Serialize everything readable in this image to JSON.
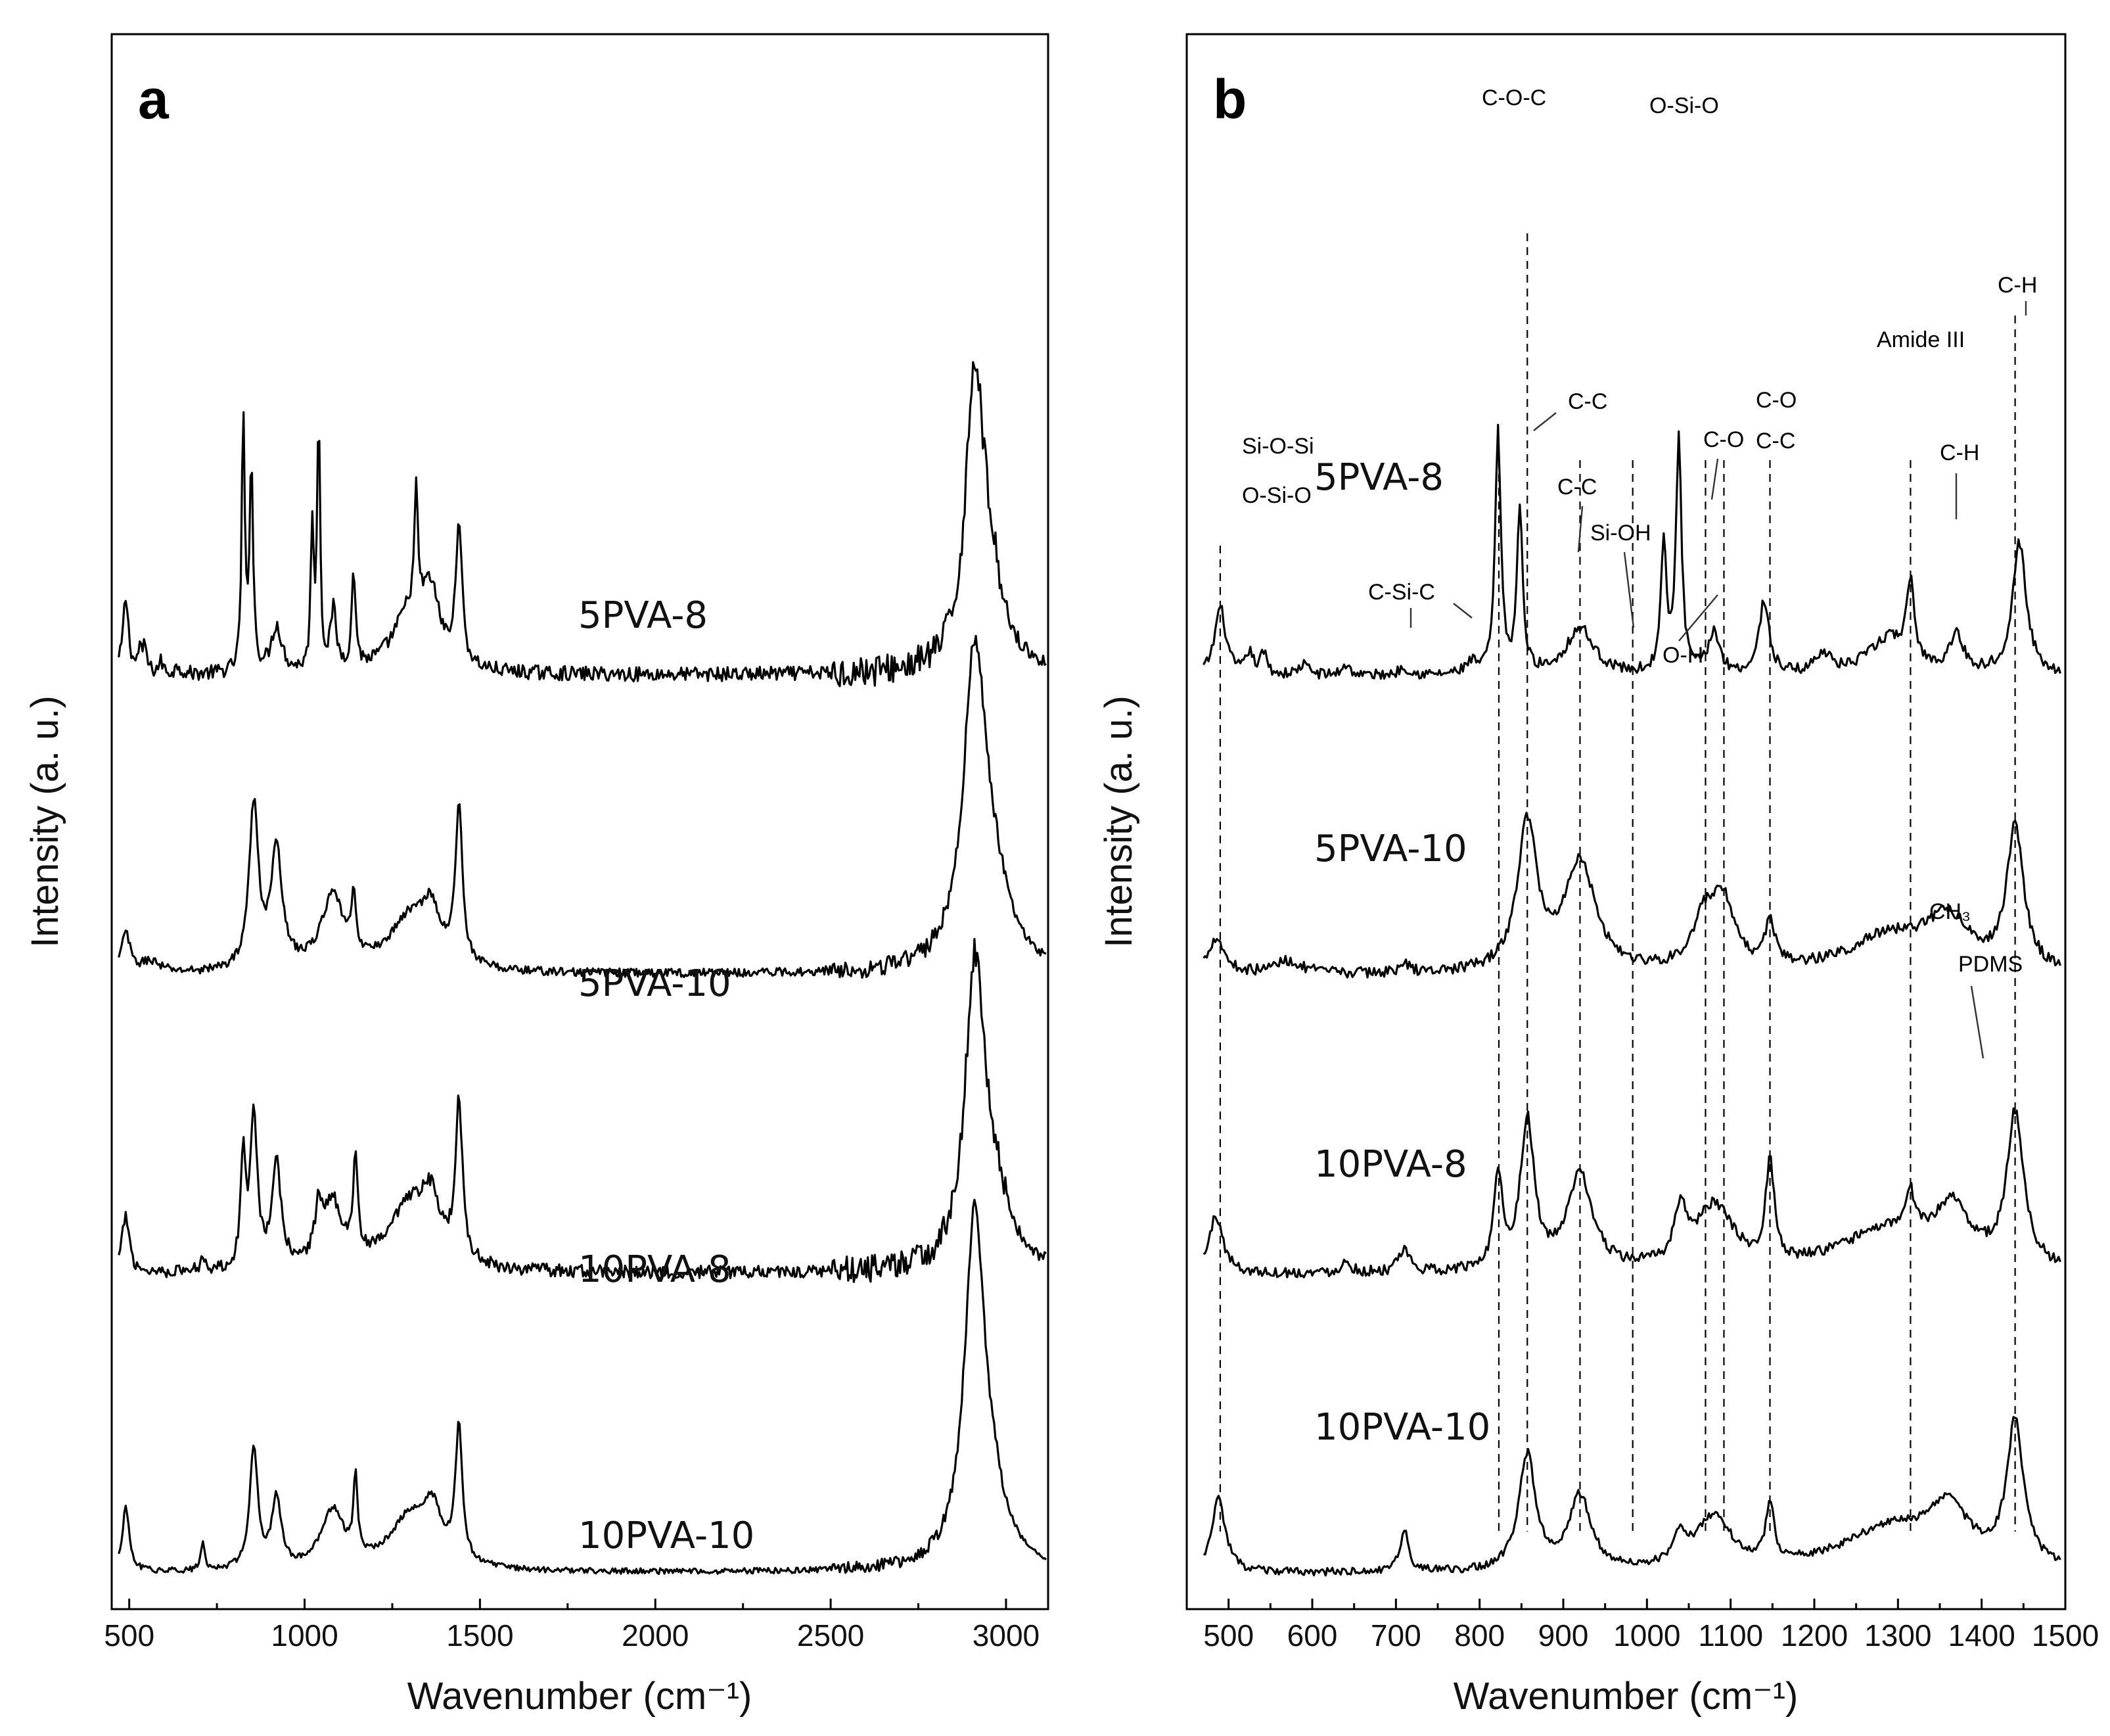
{
  "chart_data": [
    {
      "type": "line",
      "panel": "a",
      "xlabel": "Wavenumber (cm⁻¹)",
      "ylabel": "Intensity (a. u.)",
      "xlim": [
        450,
        3120
      ],
      "xticks": [
        500,
        1000,
        1500,
        2000,
        2500,
        3000
      ],
      "yticks": "none",
      "series": [
        {
          "name": "5PVA-8",
          "offset": 3.0,
          "label_x": 2000,
          "peaks": [
            [
              490,
              0.26,
              10
            ],
            [
              530,
              0.08,
              6
            ],
            [
              545,
              0.09,
              6
            ],
            [
              590,
              0.04,
              8
            ],
            [
              640,
              0.03,
              8
            ],
            [
              825,
              0.88,
              5
            ],
            [
              848,
              0.72,
              6
            ],
            [
              920,
              0.16,
              18
            ],
            [
              1022,
              0.5,
              5
            ],
            [
              1040,
              0.87,
              5
            ],
            [
              1082,
              0.2,
              10
            ],
            [
              1140,
              0.32,
              7
            ],
            [
              1300,
              0.2,
              60
            ],
            [
              1318,
              0.4,
              6
            ],
            [
              1360,
              0.22,
              30
            ],
            [
              1440,
              0.5,
              10
            ],
            [
              2910,
              0.92,
              30
            ],
            [
              2950,
              0.3,
              50
            ]
          ],
          "noise": 0.025
        },
        {
          "name": "5PVA-10",
          "offset": 2.0,
          "label_x": 2000,
          "peaks": [
            [
              490,
              0.14,
              14
            ],
            [
              560,
              0.04,
              30
            ],
            [
              855,
              0.56,
              16
            ],
            [
              920,
              0.4,
              20
            ],
            [
              1080,
              0.25,
              40
            ],
            [
              1140,
              0.18,
              8
            ],
            [
              1300,
              0.18,
              70
            ],
            [
              1360,
              0.16,
              30
            ],
            [
              1440,
              0.54,
              12
            ],
            [
              2910,
              1.02,
              38
            ],
            [
              2960,
              0.25,
              60
            ]
          ],
          "noise": 0.015
        },
        {
          "name": "10PVA-8",
          "offset": 1.0,
          "label_x": 2000,
          "peaks": [
            [
              490,
              0.2,
              12
            ],
            [
              710,
              0.05,
              8
            ],
            [
              825,
              0.38,
              8
            ],
            [
              855,
              0.54,
              12
            ],
            [
              920,
              0.35,
              16
            ],
            [
              1040,
              0.16,
              12
            ],
            [
              1080,
              0.22,
              35
            ],
            [
              1145,
              0.33,
              8
            ],
            [
              1300,
              0.22,
              70
            ],
            [
              1360,
              0.18,
              30
            ],
            [
              1440,
              0.55,
              12
            ],
            [
              2910,
              0.94,
              32
            ],
            [
              2955,
              0.28,
              55
            ]
          ],
          "noise": 0.022
        },
        {
          "name": "10PVA-10",
          "offset": 0.0,
          "label_x": 2000,
          "peaks": [
            [
              490,
              0.22,
              12
            ],
            [
              710,
              0.1,
              6
            ],
            [
              855,
              0.42,
              14
            ],
            [
              920,
              0.24,
              16
            ],
            [
              1080,
              0.2,
              40
            ],
            [
              1145,
              0.27,
              7
            ],
            [
              1300,
              0.18,
              70
            ],
            [
              1365,
              0.16,
              30
            ],
            [
              1440,
              0.46,
              12
            ],
            [
              2910,
              1.15,
              34
            ],
            [
              2955,
              0.2,
              55
            ]
          ],
          "noise": 0.01
        }
      ]
    },
    {
      "type": "line",
      "panel": "b",
      "xlabel": "Wavenumber (cm⁻¹)",
      "ylabel": "Intensity (a. u.)",
      "xlim": [
        450,
        1500
      ],
      "xticks": [
        500,
        600,
        700,
        800,
        900,
        1000,
        1100,
        1200,
        1300,
        1400,
        1500
      ],
      "yticks": "none",
      "guide_lines_at": [
        490,
        823,
        857,
        920,
        983,
        1070,
        1092,
        1147,
        1315,
        1440
      ],
      "series": [
        {
          "name": "5PVA-8",
          "offset": 3.0,
          "label_x": 555,
          "peaks": [
            [
              490,
              0.26,
              8
            ],
            [
              525,
              0.08,
              5
            ],
            [
              542,
              0.08,
              5
            ],
            [
              590,
              0.04,
              8
            ],
            [
              640,
              0.04,
              6
            ],
            [
              710,
              0.03,
              8
            ],
            [
              790,
              0.04,
              8
            ],
            [
              822,
              0.92,
              4
            ],
            [
              848,
              0.62,
              4
            ],
            [
              920,
              0.18,
              20
            ],
            [
              1020,
              0.48,
              4
            ],
            [
              1038,
              0.88,
              4
            ],
            [
              1080,
              0.16,
              8
            ],
            [
              1140,
              0.28,
              7
            ],
            [
              1210,
              0.08,
              10
            ],
            [
              1290,
              0.14,
              30
            ],
            [
              1315,
              0.3,
              5
            ],
            [
              1370,
              0.14,
              10
            ],
            [
              1445,
              0.5,
              10
            ]
          ],
          "noise": 0.02
        },
        {
          "name": "5PVA-10",
          "offset": 2.0,
          "label_x": 555,
          "peaks": [
            [
              485,
              0.14,
              12
            ],
            [
              570,
              0.05,
              20
            ],
            [
              710,
              0.03,
              8
            ],
            [
              857,
              0.56,
              14
            ],
            [
              920,
              0.42,
              22
            ],
            [
              1070,
              0.2,
              18
            ],
            [
              1092,
              0.22,
              15
            ],
            [
              1147,
              0.16,
              8
            ],
            [
              1290,
              0.14,
              60
            ],
            [
              1360,
              0.18,
              30
            ],
            [
              1440,
              0.54,
              12
            ]
          ],
          "noise": 0.02
        },
        {
          "name": "10PVA-8",
          "offset": 1.0,
          "label_x": 555,
          "peaks": [
            [
              485,
              0.22,
              10
            ],
            [
              640,
              0.04,
              8
            ],
            [
              710,
              0.08,
              8
            ],
            [
              822,
              0.36,
              6
            ],
            [
              857,
              0.56,
              10
            ],
            [
              920,
              0.36,
              18
            ],
            [
              1040,
              0.2,
              8
            ],
            [
              1080,
              0.24,
              28
            ],
            [
              1147,
              0.38,
              6
            ],
            [
              1290,
              0.16,
              70
            ],
            [
              1315,
              0.14,
              6
            ],
            [
              1365,
              0.2,
              25
            ],
            [
              1440,
              0.58,
              12
            ]
          ],
          "noise": 0.02
        },
        {
          "name": "10PVA-10",
          "offset": 0.0,
          "label_x": 555,
          "peaks": [
            [
              488,
              0.28,
              10
            ],
            [
              710,
              0.16,
              6
            ],
            [
              857,
              0.44,
              12
            ],
            [
              920,
              0.28,
              16
            ],
            [
              1040,
              0.1,
              10
            ],
            [
              1080,
              0.2,
              25
            ],
            [
              1147,
              0.22,
              6
            ],
            [
              1290,
              0.16,
              70
            ],
            [
              1360,
              0.2,
              30
            ],
            [
              1440,
              0.54,
              12
            ]
          ],
          "noise": 0.015
        }
      ],
      "annotations": [
        "Si-O-Si",
        "O-Si-O",
        "C-Si-C",
        "C-O-C",
        "C-C",
        "C-C",
        "Si-OH",
        "O-Si-O",
        "C-O",
        "O-H",
        "C-O",
        "C-C",
        "Amide III",
        "C-H",
        "C-H",
        "CH₃",
        "PDMS"
      ]
    }
  ]
}
